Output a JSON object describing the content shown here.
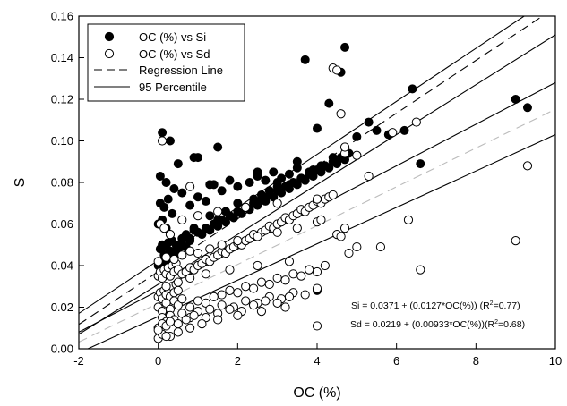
{
  "chart_data": {
    "type": "scatter",
    "xlabel": "OC (%)",
    "ylabel": "S",
    "xlim": [
      -2,
      10
    ],
    "ylim": [
      0,
      0.16
    ],
    "xticks": [
      -2,
      0,
      2,
      4,
      6,
      8,
      10
    ],
    "yticks": [
      0.0,
      0.02,
      0.04,
      0.06,
      0.08,
      0.1,
      0.12,
      0.14,
      0.16
    ],
    "xtick_labels": [
      "-2",
      "0",
      "2",
      "4",
      "6",
      "8",
      "10"
    ],
    "ytick_labels": [
      "0.00",
      "0.02",
      "0.04",
      "0.06",
      "0.08",
      "0.10",
      "0.12",
      "0.14",
      "0.16"
    ],
    "grid": false,
    "legend_position": "top-left",
    "legend": [
      {
        "label": "OC (%) vs Si",
        "symbol": "filled-circle"
      },
      {
        "label": "OC (%) vs Sd",
        "symbol": "open-circle"
      },
      {
        "label": "Regression Line",
        "symbol": "dashed-line"
      },
      {
        "label": "95 Percentile",
        "symbol": "solid-line"
      }
    ],
    "equations": [
      {
        "text": "Si = 0.0371 + (0.0127*OC(%)) (R",
        "sup": "2",
        "tail": "=0.77)"
      },
      {
        "text": "Sd = 0.0219 + (0.00933*OC(%))(R",
        "sup": "2",
        "tail": "=0.68)"
      }
    ],
    "series": [
      {
        "name": "OC (%) vs Si",
        "marker": "filled",
        "color": "#000000",
        "x": [
          0.05,
          0.1,
          0.15,
          0.2,
          0.25,
          0.3,
          0.35,
          0.4,
          0.0,
          0.1,
          0.2,
          0.3,
          0.05,
          0.15,
          0.25,
          0.35,
          0.45,
          0.5,
          0.6,
          0.7,
          0.8,
          0.9,
          0.2,
          0.4,
          0.6,
          0.8,
          1.0,
          1.1,
          1.2,
          1.3,
          1.4,
          1.5,
          1.6,
          1.7,
          1.8,
          1.9,
          2.0,
          2.1,
          2.2,
          2.3,
          2.4,
          2.5,
          2.6,
          2.7,
          2.8,
          2.9,
          3.0,
          3.1,
          3.2,
          3.3,
          3.4,
          3.5,
          3.6,
          3.7,
          3.8,
          3.9,
          4.0,
          4.1,
          4.2,
          4.3,
          4.4,
          4.5,
          4.6,
          4.7,
          4.8,
          0.1,
          0.3,
          0.5,
          0.7,
          0.9,
          1.3,
          1.5,
          1.7,
          2.0,
          2.2,
          2.4,
          2.6,
          2.8,
          3.0,
          3.3,
          3.6,
          3.9,
          4.2,
          4.5,
          4.7,
          0.05,
          0.2,
          0.4,
          0.6,
          0.8,
          1.0,
          1.2,
          1.4,
          1.6,
          1.8,
          2.0,
          2.3,
          2.5,
          2.7,
          2.9,
          3.1,
          3.3,
          3.5,
          3.8,
          4.1,
          4.4,
          0.1,
          0.3,
          1.0,
          1.5,
          2.5,
          3.0,
          3.5,
          4.0,
          4.3,
          0.0,
          0.1,
          0.2,
          0.5,
          0.9,
          1.3,
          3.7,
          4.6,
          4.7,
          5.0,
          5.3,
          5.5,
          5.8,
          6.2,
          6.4,
          6.6,
          9.0,
          9.3,
          4.0
        ],
        "y": [
          0.048,
          0.05,
          0.045,
          0.049,
          0.051,
          0.047,
          0.052,
          0.046,
          0.06,
          0.062,
          0.058,
          0.055,
          0.07,
          0.068,
          0.072,
          0.065,
          0.05,
          0.048,
          0.053,
          0.055,
          0.052,
          0.057,
          0.043,
          0.047,
          0.05,
          0.053,
          0.056,
          0.055,
          0.058,
          0.057,
          0.06,
          0.059,
          0.062,
          0.061,
          0.064,
          0.063,
          0.066,
          0.065,
          0.068,
          0.067,
          0.07,
          0.069,
          0.072,
          0.071,
          0.074,
          0.073,
          0.076,
          0.075,
          0.078,
          0.077,
          0.08,
          0.079,
          0.082,
          0.081,
          0.084,
          0.083,
          0.086,
          0.085,
          0.088,
          0.087,
          0.09,
          0.089,
          0.092,
          0.091,
          0.094,
          0.041,
          0.044,
          0.046,
          0.049,
          0.058,
          0.064,
          0.062,
          0.066,
          0.07,
          0.068,
          0.072,
          0.074,
          0.076,
          0.078,
          0.079,
          0.082,
          0.086,
          0.088,
          0.09,
          0.093,
          0.083,
          0.08,
          0.077,
          0.075,
          0.069,
          0.073,
          0.071,
          0.079,
          0.076,
          0.081,
          0.078,
          0.08,
          0.083,
          0.081,
          0.085,
          0.082,
          0.084,
          0.087,
          0.085,
          0.088,
          0.092,
          0.104,
          0.1,
          0.092,
          0.097,
          0.085,
          0.08,
          0.09,
          0.106,
          0.118,
          0.04,
          0.038,
          0.042,
          0.089,
          0.092,
          0.079,
          0.139,
          0.133,
          0.145,
          0.102,
          0.109,
          0.105,
          0.103,
          0.105,
          0.125,
          0.089,
          0.12,
          0.116,
          0.028
        ]
      },
      {
        "name": "OC (%) vs Sd",
        "marker": "open",
        "color": "#000000",
        "x": [
          0.0,
          0.05,
          0.1,
          0.15,
          0.2,
          0.25,
          0.3,
          0.35,
          0.4,
          0.45,
          0.5,
          0.0,
          0.05,
          0.1,
          0.15,
          0.2,
          0.25,
          0.3,
          0.35,
          0.4,
          0.45,
          0.5,
          0.6,
          0.7,
          0.8,
          0.9,
          1.0,
          1.1,
          1.2,
          1.3,
          1.4,
          1.5,
          1.6,
          1.7,
          1.8,
          1.9,
          2.0,
          2.1,
          2.2,
          2.3,
          2.4,
          2.5,
          2.6,
          2.7,
          2.8,
          2.9,
          3.0,
          3.1,
          3.2,
          3.3,
          3.4,
          3.5,
          3.6,
          3.7,
          3.8,
          3.9,
          4.0,
          4.1,
          4.2,
          4.3,
          4.4,
          0.0,
          0.1,
          0.2,
          0.3,
          0.4,
          0.5,
          0.6,
          0.8,
          1.0,
          1.2,
          1.4,
          1.6,
          1.8,
          2.0,
          2.2,
          2.4,
          2.6,
          2.8,
          3.0,
          3.2,
          3.4,
          3.6,
          3.8,
          4.0,
          4.2,
          0.1,
          0.2,
          0.3,
          0.4,
          0.6,
          0.8,
          1.0,
          1.3,
          1.6,
          1.9,
          2.2,
          2.5,
          2.8,
          3.1,
          3.4,
          3.7,
          4.0,
          0.0,
          0.1,
          0.2,
          0.3,
          0.5,
          0.7,
          0.9,
          1.2,
          1.5,
          1.8,
          2.1,
          2.4,
          2.7,
          3.0,
          3.3,
          0.0,
          0.2,
          0.4,
          0.6,
          0.8,
          1.0,
          1.3,
          1.6,
          2.0,
          2.5,
          3.0,
          3.5,
          0.0,
          0.1,
          0.3,
          0.5,
          0.8,
          1.1,
          1.5,
          2.0,
          2.6,
          3.2,
          0.2,
          0.5,
          0.8,
          1.2,
          1.8,
          2.5,
          3.3,
          0.05,
          0.15,
          0.3,
          0.6,
          1.0,
          1.5,
          2.2,
          3.0,
          4.0,
          0.1,
          0.8,
          4.6,
          4.7,
          4.0,
          4.1,
          4.5,
          4.6,
          4.7,
          4.8,
          5.0,
          5.3,
          5.6,
          5.9,
          6.3,
          6.5,
          6.6,
          9.0,
          9.3,
          3.8,
          4.0,
          0.0,
          0.2,
          4.4,
          4.5,
          4.7,
          5.0
        ],
        "y": [
          0.025,
          0.027,
          0.024,
          0.028,
          0.026,
          0.029,
          0.025,
          0.03,
          0.027,
          0.031,
          0.028,
          0.035,
          0.037,
          0.034,
          0.038,
          0.036,
          0.039,
          0.035,
          0.04,
          0.037,
          0.041,
          0.038,
          0.036,
          0.037,
          0.039,
          0.038,
          0.04,
          0.041,
          0.043,
          0.042,
          0.044,
          0.045,
          0.047,
          0.046,
          0.048,
          0.049,
          0.051,
          0.05,
          0.052,
          0.053,
          0.055,
          0.054,
          0.056,
          0.057,
          0.059,
          0.058,
          0.06,
          0.061,
          0.063,
          0.062,
          0.064,
          0.065,
          0.067,
          0.066,
          0.068,
          0.069,
          0.071,
          0.07,
          0.072,
          0.073,
          0.074,
          0.02,
          0.018,
          0.022,
          0.019,
          0.023,
          0.021,
          0.024,
          0.02,
          0.023,
          0.022,
          0.025,
          0.026,
          0.028,
          0.027,
          0.03,
          0.029,
          0.032,
          0.031,
          0.034,
          0.033,
          0.036,
          0.035,
          0.038,
          0.037,
          0.04,
          0.015,
          0.013,
          0.016,
          0.014,
          0.017,
          0.015,
          0.018,
          0.019,
          0.021,
          0.02,
          0.023,
          0.022,
          0.025,
          0.024,
          0.027,
          0.026,
          0.029,
          0.01,
          0.012,
          0.011,
          0.013,
          0.012,
          0.014,
          0.016,
          0.015,
          0.017,
          0.019,
          0.018,
          0.021,
          0.023,
          0.022,
          0.025,
          0.042,
          0.044,
          0.043,
          0.045,
          0.047,
          0.046,
          0.048,
          0.05,
          0.052,
          0.054,
          0.056,
          0.058,
          0.005,
          0.007,
          0.006,
          0.008,
          0.01,
          0.012,
          0.014,
          0.016,
          0.018,
          0.02,
          0.03,
          0.032,
          0.034,
          0.036,
          0.038,
          0.04,
          0.042,
          0.06,
          0.058,
          0.055,
          0.062,
          0.064,
          0.066,
          0.068,
          0.07,
          0.072,
          0.1,
          0.078,
          0.113,
          0.094,
          0.061,
          0.062,
          0.055,
          0.054,
          0.058,
          0.046,
          0.049,
          0.083,
          0.049,
          0.104,
          0.062,
          0.109,
          0.038,
          0.052,
          0.088,
          0.038,
          0.011,
          0.009,
          0.006,
          0.135,
          0.134,
          0.097,
          0.093
        ]
      }
    ],
    "lines": [
      {
        "name": "Si regression",
        "style": "dashed",
        "color": "#000000",
        "x": [
          -2,
          10
        ],
        "y": [
          0.0117,
          0.1641
        ]
      },
      {
        "name": "Sd regression",
        "style": "dashed",
        "color": "#bbbbbb",
        "x": [
          -2,
          10
        ],
        "y": [
          0.00324,
          0.1152
        ]
      },
      {
        "name": "Si 95 upper",
        "style": "solid",
        "color": "#000000",
        "x": [
          -2,
          10
        ],
        "y": [
          0.017,
          0.17
        ]
      },
      {
        "name": "Si 95 lower",
        "style": "solid",
        "color": "#000000",
        "x": [
          -2,
          10
        ],
        "y": [
          0.007,
          0.151
        ]
      },
      {
        "name": "Sd 95 upper",
        "style": "solid",
        "color": "#000000",
        "x": [
          -2,
          10
        ],
        "y": [
          0.008,
          0.128
        ]
      },
      {
        "name": "Sd 95 lower",
        "style": "solid",
        "color": "#000000",
        "x": [
          -2,
          10
        ],
        "y": [
          -0.002,
          0.103
        ]
      }
    ]
  }
}
